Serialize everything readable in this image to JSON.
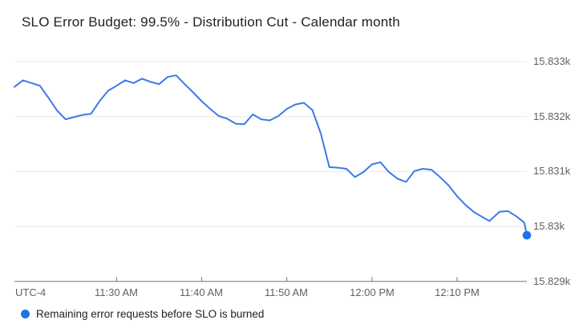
{
  "header": {
    "title": "SLO Error Budget: 99.5% - Distribution Cut - Calendar month"
  },
  "axes": {
    "timezone_label": "UTC-4"
  },
  "colors": {
    "background": "#ffffff",
    "line": "#3d79e8",
    "marker": "#1a73e8",
    "gridline": "#e8e8e8",
    "axis_line": "#757575",
    "tick_label": "#616161",
    "title_text": "#212121",
    "legend_text": "#212121"
  },
  "chart_data": {
    "type": "line",
    "title": "SLO Error Budget: 99.5% - Distribution Cut - Calendar month",
    "xlabel": "",
    "ylabel": "",
    "timezone": "UTC-4",
    "x_unit": "minutes relative to 11:30 AM",
    "xlim_minutes": [
      -12,
      48.2
    ],
    "x_axis_ticks": [
      "11:30 AM",
      "11:40 AM",
      "11:50 AM",
      "12:00 PM",
      "12:10 PM"
    ],
    "x_tick_minutes": [
      0,
      10,
      20,
      30,
      40
    ],
    "y_axis_ticks": [
      "15.833k",
      "15.832k",
      "15.831k",
      "15.83k",
      "15.829k"
    ],
    "y_tick_values": [
      15833,
      15832,
      15831,
      15830,
      15829
    ],
    "ylim": [
      15829,
      15833.1
    ],
    "grid": true,
    "legend_position": "bottom-left",
    "series": [
      {
        "name": "Remaining error requests before SLO is burned",
        "color": "#3d79e8",
        "marker_color": "#1a73e8",
        "points": [
          [
            -12,
            15832.54
          ],
          [
            -11,
            15832.66
          ],
          [
            -10,
            15832.61
          ],
          [
            -9,
            15832.56
          ],
          [
            -8,
            15832.34
          ],
          [
            -7,
            15832.11
          ],
          [
            -6,
            15831.95
          ],
          [
            -5,
            15831.99
          ],
          [
            -4,
            15832.03
          ],
          [
            -3,
            15832.05
          ],
          [
            -2,
            15832.28
          ],
          [
            -1,
            15832.47
          ],
          [
            0,
            15832.56
          ],
          [
            1,
            15832.66
          ],
          [
            2,
            15832.61
          ],
          [
            3,
            15832.69
          ],
          [
            4,
            15832.63
          ],
          [
            5,
            15832.59
          ],
          [
            6,
            15832.72
          ],
          [
            7,
            15832.75
          ],
          [
            8,
            15832.59
          ],
          [
            9,
            15832.44
          ],
          [
            10,
            15832.28
          ],
          [
            11,
            15832.14
          ],
          [
            12,
            15832.01
          ],
          [
            13,
            15831.96
          ],
          [
            14,
            15831.87
          ],
          [
            15,
            15831.86
          ],
          [
            16,
            15832.04
          ],
          [
            17,
            15831.95
          ],
          [
            18,
            15831.93
          ],
          [
            19,
            15832.01
          ],
          [
            20,
            15832.14
          ],
          [
            21,
            15832.22
          ],
          [
            22,
            15832.25
          ],
          [
            23,
            15832.12
          ],
          [
            24,
            15831.69
          ],
          [
            25,
            15831.08
          ],
          [
            26,
            15831.07
          ],
          [
            27,
            15831.05
          ],
          [
            28,
            15830.9
          ],
          [
            29,
            15830.99
          ],
          [
            30,
            15831.13
          ],
          [
            31,
            15831.17
          ],
          [
            32,
            15830.99
          ],
          [
            33,
            15830.87
          ],
          [
            34,
            15830.81
          ],
          [
            35,
            15831.01
          ],
          [
            36,
            15831.05
          ],
          [
            37,
            15831.03
          ],
          [
            38,
            15830.9
          ],
          [
            39,
            15830.75
          ],
          [
            40,
            15830.55
          ],
          [
            41,
            15830.39
          ],
          [
            42,
            15830.26
          ],
          [
            43,
            15830.17
          ],
          [
            43.8,
            15830.1
          ],
          [
            45,
            15830.27
          ],
          [
            46,
            15830.28
          ],
          [
            47,
            15830.18
          ],
          [
            47.9,
            15830.07
          ],
          [
            48.2,
            15829.84
          ]
        ]
      }
    ]
  }
}
